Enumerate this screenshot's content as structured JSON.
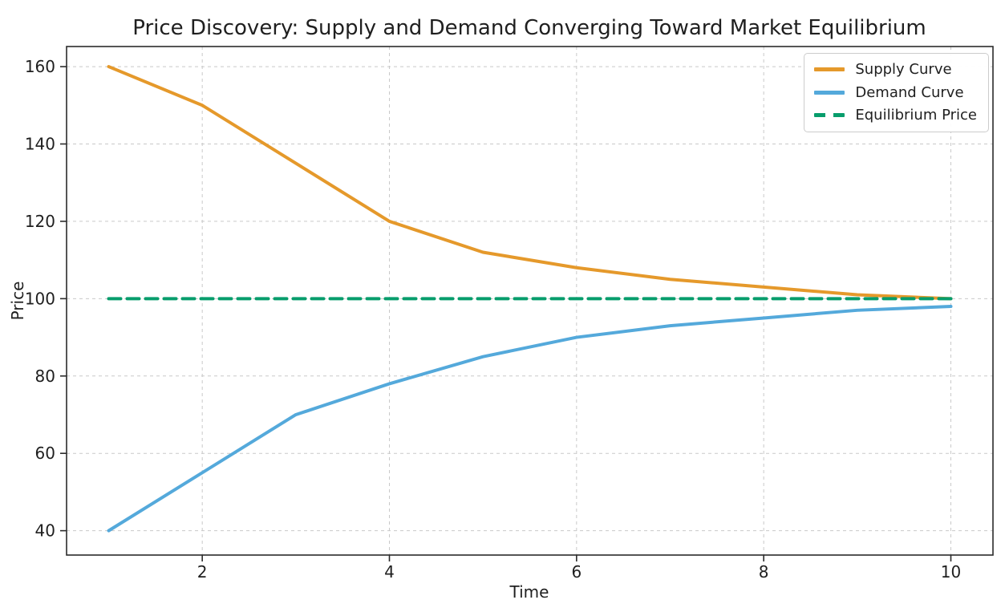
{
  "chart_data": {
    "type": "line",
    "title": "Price Discovery: Supply and Demand Converging Toward Market Equilibrium",
    "xlabel": "Time",
    "ylabel": "Price",
    "x": [
      1,
      2,
      3,
      4,
      5,
      6,
      7,
      8,
      9,
      10
    ],
    "series": [
      {
        "name": "Supply Curve",
        "values": [
          160,
          150,
          135,
          120,
          112,
          108,
          105,
          103,
          101,
          100
        ],
        "color": "#E5992B",
        "style": "solid"
      },
      {
        "name": "Demand Curve",
        "values": [
          40,
          55,
          70,
          78,
          85,
          90,
          93,
          95,
          97,
          98
        ],
        "color": "#54A9DB",
        "style": "solid"
      },
      {
        "name": "Equilibrium Price",
        "values": [
          100,
          100,
          100,
          100,
          100,
          100,
          100,
          100,
          100,
          100
        ],
        "color": "#079D6C",
        "style": "dashed"
      }
    ],
    "xticks": [
      2,
      4,
      6,
      8,
      10
    ],
    "yticks": [
      40,
      60,
      80,
      100,
      120,
      140,
      160
    ],
    "xlim": [
      0.55,
      10.45
    ],
    "ylim": [
      33.7,
      165.2
    ],
    "grid": true,
    "legend_position": "upper right",
    "colors": {
      "grid": "#c9c9c9",
      "spine": "#2b2b2b",
      "text": "#1f1f1f",
      "background": "#ffffff"
    }
  }
}
